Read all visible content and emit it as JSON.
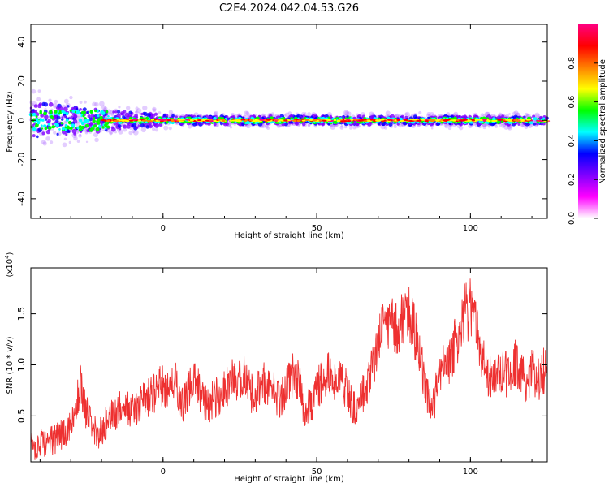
{
  "title": "C2E4.2024.042.04.53.G26",
  "chart_data": [
    {
      "type": "heatmap",
      "xlabel": "Height of straight line (km)",
      "ylabel": "Frequency (Hz)",
      "xlim": [
        -43,
        125
      ],
      "ylim": [
        -50,
        49
      ],
      "xticks": [
        0,
        50,
        100
      ],
      "yticks": [
        -40,
        -20,
        0,
        20,
        40
      ],
      "colorbar": {
        "label": "Normalized spectral amplitude",
        "range": [
          0,
          1
        ],
        "ticks": [
          "0.0",
          "0.2",
          "0.4",
          "0.6",
          "0.8"
        ],
        "tick_values": [
          0,
          0.2,
          0.4,
          0.6,
          0.8
        ]
      },
      "colormap": [
        "#ffffff",
        "#8000ff",
        "#0000ff",
        "#00ffff",
        "#00ff00",
        "#ffff00",
        "#ff8000",
        "#ff0000",
        "#ff0080"
      ],
      "ridge": {
        "center_frequency": 0,
        "spread_start": 10,
        "spread_end": 3
      }
    },
    {
      "type": "line",
      "xlabel": "Height of straight line (km)",
      "ylabel": "SNR (10 * v/v)",
      "y_multiplier_label": "(x10^4)",
      "xlim": [
        -43,
        125
      ],
      "ylim": [
        0.05,
        1.95
      ],
      "xticks": [
        0,
        50,
        100
      ],
      "yticks": [
        0.5,
        1.0,
        1.5
      ],
      "line_color": "#ee3030",
      "x": [
        -43,
        -40,
        -37,
        -34,
        -31,
        -29,
        -27,
        -25,
        -23,
        -21,
        -18,
        -15,
        -12,
        -9,
        -6,
        -4,
        -2,
        0,
        2,
        4,
        6,
        8,
        10,
        12,
        14,
        16,
        18,
        20,
        22,
        24,
        26,
        28,
        30,
        32,
        34,
        36,
        38,
        40,
        42,
        44,
        46,
        48,
        50,
        52,
        54,
        56,
        58,
        60,
        62,
        64,
        66,
        68,
        70,
        72,
        74,
        76,
        78,
        80,
        82,
        84,
        86,
        88,
        90,
        92,
        94,
        96,
        98,
        100,
        102,
        104,
        106,
        108,
        110,
        112,
        114,
        116,
        118,
        120,
        122,
        124,
        125
      ],
      "y": [
        0.2,
        0.22,
        0.25,
        0.3,
        0.35,
        0.45,
        0.8,
        0.55,
        0.4,
        0.3,
        0.45,
        0.55,
        0.6,
        0.55,
        0.65,
        0.7,
        0.75,
        0.8,
        0.7,
        0.85,
        0.6,
        0.7,
        0.9,
        0.75,
        0.6,
        0.65,
        0.7,
        0.75,
        0.85,
        0.8,
        0.9,
        0.75,
        0.7,
        0.85,
        0.8,
        0.75,
        0.65,
        0.8,
        0.9,
        0.85,
        0.55,
        0.6,
        0.75,
        0.85,
        0.9,
        0.85,
        0.8,
        0.75,
        0.6,
        0.65,
        0.8,
        0.95,
        1.25,
        1.35,
        1.4,
        1.35,
        1.45,
        1.5,
        1.3,
        1.0,
        0.7,
        0.6,
        0.95,
        1.0,
        1.1,
        1.3,
        1.5,
        1.55,
        1.35,
        1.05,
        0.9,
        0.85,
        0.95,
        0.9,
        1.05,
        0.9,
        0.85,
        0.95,
        0.85,
        0.95,
        0.9
      ]
    }
  ]
}
